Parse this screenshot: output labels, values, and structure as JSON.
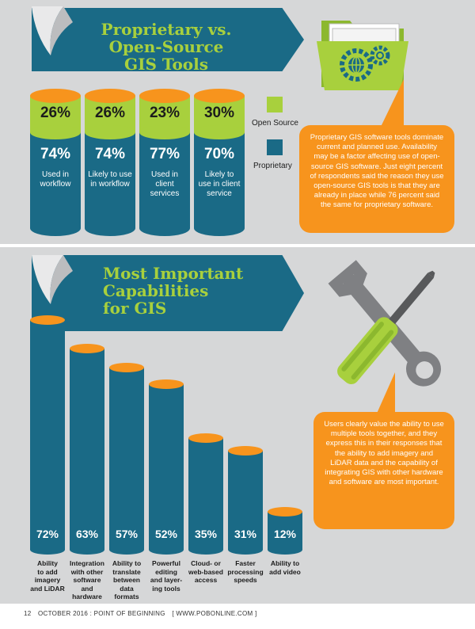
{
  "section1": {
    "title_line1": "Proprietary vs.",
    "title_line2": "Open-Source",
    "title_line3": "GIS Tools",
    "legend": [
      {
        "label": "Open Source",
        "color": "#a8d03d"
      },
      {
        "label": "Proprietary",
        "color": "#1a6a86"
      }
    ],
    "cylinders": [
      {
        "open_source": "26%",
        "proprietary": "74%",
        "label_line1": "Used in",
        "label_line2": "workflow",
        "label_line3": ""
      },
      {
        "open_source": "26%",
        "proprietary": "74%",
        "label_line1": "Likely to use",
        "label_line2": "in workflow",
        "label_line3": ""
      },
      {
        "open_source": "23%",
        "proprietary": "77%",
        "label_line1": "Used in",
        "label_line2": "client",
        "label_line3": "services"
      },
      {
        "open_source": "30%",
        "proprietary": "70%",
        "label_line1": "Likely to",
        "label_line2": "use in client",
        "label_line3": "service"
      }
    ],
    "callout": "Proprietary GIS software tools dominate current and planned use. Availability may be a factor affecting use of open-source GIS software. Just eight percent of respondents said the reason they use open-source GIS tools is that they are already in place while 76 percent said the same for proprietary software."
  },
  "section2": {
    "title_line1": "Most Important",
    "title_line2": "Capabilities",
    "title_line3": "for GIS",
    "callout": "Users clearly value the ability to use multiple tools together, and they express this in their responses that the ability to add imagery and LiDAR data and the capability of integrating GIS with other hardware and software are most important."
  },
  "chart_data": {
    "type": "bar",
    "title": "Most Important Capabilities for GIS",
    "categories": [
      "Ability to add imagery and LiDAR",
      "Integration with other software and hardware",
      "Ability to translate between data formats",
      "Powerful editing and layer-ing tools",
      "Cloud- or web-based access",
      "Faster processing speeds",
      "Ability to add video"
    ],
    "category_lines": [
      [
        "Ability",
        "to add",
        "imagery",
        "and LiDAR"
      ],
      [
        "Integration",
        "with other",
        "software",
        "and",
        "hardware"
      ],
      [
        "Ability to",
        "translate",
        "between",
        "data",
        "formats"
      ],
      [
        "Powerful",
        "editing",
        "and layer-",
        "ing tools"
      ],
      [
        "Cloud- or",
        "web-based",
        "access"
      ],
      [
        "Faster",
        "processing",
        "speeds"
      ],
      [
        "Ability to",
        "add video"
      ]
    ],
    "values": [
      72,
      63,
      57,
      52,
      35,
      31,
      12
    ],
    "value_labels": [
      "72%",
      "63%",
      "57%",
      "52%",
      "35%",
      "31%",
      "12%"
    ],
    "ylim": [
      0,
      100
    ],
    "xlabel": "",
    "ylabel": ""
  },
  "footer": {
    "page_number": "12",
    "issue": "OCTOBER 2016 : POINT OF BEGINNING",
    "site": "[ WWW.POBONLINE.COM ]"
  },
  "colors": {
    "teal": "#1a6a86",
    "green": "#a8d03d",
    "orange": "#f7941d",
    "gray": "#d6d7d8"
  }
}
